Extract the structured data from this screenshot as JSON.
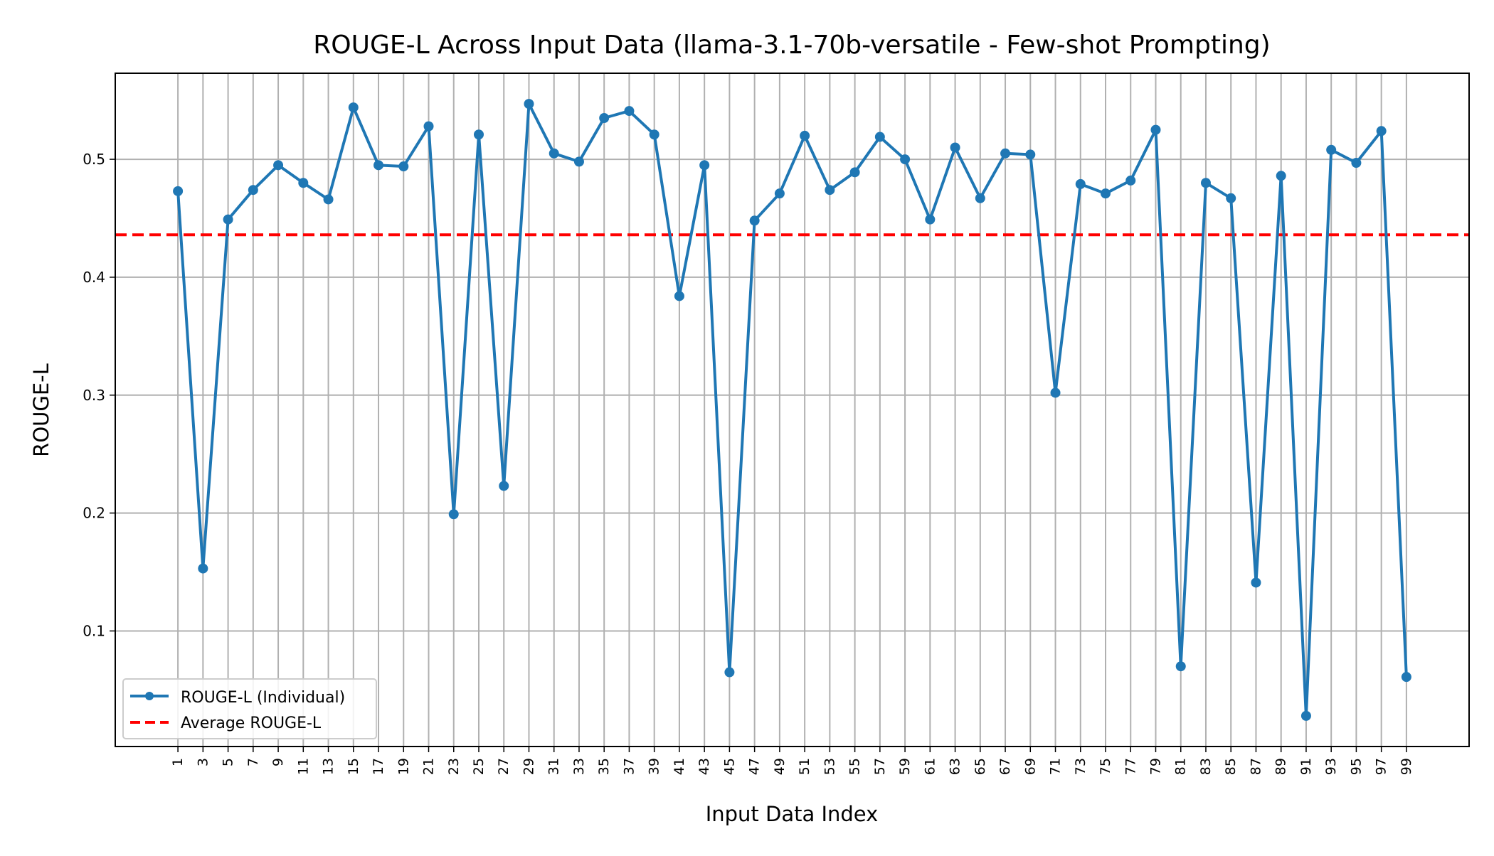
{
  "chart_data": {
    "type": "line",
    "title": "ROUGE-L Across Input Data (llama-3.1-70b-versatile - Few-shot Prompting)",
    "xlabel": "Input Data Index",
    "ylabel": "ROUGE-L",
    "x": [
      1,
      3,
      5,
      7,
      9,
      11,
      13,
      15,
      17,
      19,
      21,
      23,
      25,
      27,
      29,
      31,
      33,
      35,
      37,
      39,
      41,
      43,
      45,
      47,
      49,
      51,
      53,
      55,
      57,
      59,
      61,
      63,
      65,
      67,
      69,
      71,
      73,
      75,
      77,
      79,
      81,
      83,
      85,
      87,
      89,
      91,
      93,
      95,
      97,
      99
    ],
    "xticks": [
      "1",
      "3",
      "5",
      "7",
      "9",
      "11",
      "13",
      "15",
      "17",
      "19",
      "21",
      "23",
      "25",
      "27",
      "29",
      "31",
      "33",
      "35",
      "37",
      "39",
      "41",
      "43",
      "45",
      "47",
      "49",
      "51",
      "53",
      "55",
      "57",
      "59",
      "61",
      "63",
      "65",
      "67",
      "69",
      "71",
      "73",
      "75",
      "77",
      "79",
      "81",
      "83",
      "85",
      "87",
      "89",
      "91",
      "93",
      "95",
      "97",
      "99"
    ],
    "yticks": [
      "0.1",
      "0.2",
      "0.3",
      "0.4",
      "0.5"
    ],
    "ytick_values": [
      0.1,
      0.2,
      0.3,
      0.4,
      0.5
    ],
    "xlim": [
      -4,
      104
    ],
    "ylim": [
      0.002,
      0.573
    ],
    "grid": true,
    "legend_position": "lower-left",
    "series": [
      {
        "name": "ROUGE-L (Individual)",
        "color": "#1f77b4",
        "style": "line-marker",
        "values": [
          0.473,
          0.153,
          0.449,
          0.474,
          0.495,
          0.48,
          0.466,
          0.544,
          0.495,
          0.494,
          0.528,
          0.199,
          0.521,
          0.223,
          0.547,
          0.505,
          0.498,
          0.535,
          0.541,
          0.521,
          0.384,
          0.495,
          0.065,
          0.448,
          0.471,
          0.52,
          0.474,
          0.489,
          0.519,
          0.5,
          0.449,
          0.51,
          0.467,
          0.505,
          0.504,
          0.302,
          0.479,
          0.471,
          0.482,
          0.525,
          0.07,
          0.48,
          0.467,
          0.141,
          0.486,
          0.028,
          0.508,
          0.497,
          0.524,
          0.061
        ]
      },
      {
        "name": "Average ROUGE-L",
        "color": "#ff0000",
        "style": "dashed",
        "value": 0.436
      }
    ]
  }
}
